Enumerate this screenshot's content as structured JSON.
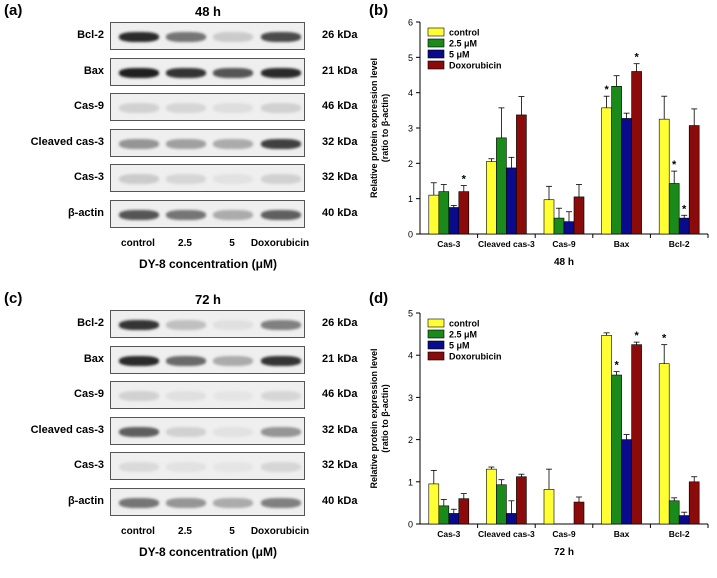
{
  "panels": {
    "a": "(a)",
    "b": "(b)",
    "c": "(c)",
    "d": "(d)"
  },
  "blot_top": {
    "title": "48 h",
    "rows": [
      {
        "label": "Bcl-2",
        "kda": "26 kDa",
        "intensity": [
          0.9,
          0.55,
          0.15,
          0.75
        ]
      },
      {
        "label": "Bax",
        "kda": "21 kDa",
        "intensity": [
          0.95,
          0.85,
          0.7,
          0.9
        ]
      },
      {
        "label": "Cas-9",
        "kda": "46 kDa",
        "intensity": [
          0.12,
          0.1,
          0.06,
          0.12
        ]
      },
      {
        "label": "Cleaved cas-3",
        "kda": "32 kDa",
        "intensity": [
          0.4,
          0.35,
          0.3,
          0.8
        ]
      },
      {
        "label": "Cas-3",
        "kda": "32 kDa",
        "intensity": [
          0.15,
          0.1,
          0.04,
          0.12
        ]
      },
      {
        "label": "β-actin",
        "kda": "40 kDa",
        "intensity": [
          0.7,
          0.55,
          0.3,
          0.65
        ]
      }
    ],
    "lanes": [
      "control",
      "2.5",
      "5",
      "Doxorubicin"
    ],
    "xaxis": "DY-8 concentration (μM)"
  },
  "blot_bottom": {
    "title": "72 h",
    "rows": [
      {
        "label": "Bcl-2",
        "kda": "26 kDa",
        "intensity": [
          0.85,
          0.2,
          0.05,
          0.5
        ]
      },
      {
        "label": "Bax",
        "kda": "21 kDa",
        "intensity": [
          0.9,
          0.6,
          0.3,
          0.85
        ]
      },
      {
        "label": "Cas-9",
        "kda": "46 kDa",
        "intensity": [
          0.12,
          0.05,
          0.03,
          0.1
        ]
      },
      {
        "label": "Cleaved cas-3",
        "kda": "32 kDa",
        "intensity": [
          0.65,
          0.12,
          0.04,
          0.4
        ]
      },
      {
        "label": "Cas-3",
        "kda": "32 kDa",
        "intensity": [
          0.08,
          0.04,
          0.03,
          0.1
        ]
      },
      {
        "label": "β-actin",
        "kda": "40 kDa",
        "intensity": [
          0.55,
          0.4,
          0.3,
          0.5
        ]
      }
    ],
    "lanes": [
      "control",
      "2.5",
      "5",
      "Doxorubicin"
    ],
    "xaxis": "DY-8 concentration (μM)"
  },
  "colors": {
    "control": "#ffff33",
    "2.5 μM": "#1a8a1a",
    "5 μM": "#0a0a8c",
    "Doxorubicin": "#8b0a0a"
  },
  "chart_data": [
    {
      "type": "bar",
      "title": "",
      "xlabel": "48 h",
      "ylabel": "Relative protein expression level (ratio to β-actin)",
      "ylim": [
        0,
        6
      ],
      "yticks": [
        0,
        1,
        2,
        3,
        4,
        5,
        6
      ],
      "categories": [
        "Cas-3",
        "Cleaved cas-3",
        "Cas-9",
        "Bax",
        "Bcl-2"
      ],
      "legend_position": "top-left",
      "series": [
        {
          "name": "control",
          "values": [
            1.1,
            2.05,
            0.97,
            3.57,
            3.25
          ],
          "errors": [
            0.35,
            0.08,
            0.38,
            0.33,
            0.65
          ]
        },
        {
          "name": "2.5 μM",
          "values": [
            1.2,
            2.72,
            0.45,
            4.18,
            1.43
          ],
          "errors": [
            0.2,
            0.85,
            0.28,
            0.3,
            0.35
          ]
        },
        {
          "name": "5 μM",
          "values": [
            0.75,
            1.87,
            0.35,
            3.27,
            0.45
          ],
          "errors": [
            0.06,
            0.3,
            0.28,
            0.15,
            0.08
          ]
        },
        {
          "name": "Doxorubicin",
          "values": [
            1.2,
            3.37,
            1.05,
            4.6,
            3.07
          ],
          "errors": [
            0.17,
            0.52,
            0.35,
            0.22,
            0.47
          ]
        }
      ],
      "significance": [
        {
          "category": "Cas-3",
          "series": "Doxorubicin"
        },
        {
          "category": "Bax",
          "series": "control"
        },
        {
          "category": "Bax",
          "series": "Doxorubicin"
        },
        {
          "category": "Bcl-2",
          "series": "2.5 μM"
        },
        {
          "category": "Bcl-2",
          "series": "5 μM"
        }
      ],
      "significance_mark": "*"
    },
    {
      "type": "bar",
      "title": "",
      "xlabel": "72 h",
      "ylabel": "Relative protein expression level (ratio to β-actin)",
      "ylim": [
        0,
        5
      ],
      "yticks": [
        0,
        1,
        2,
        3,
        4,
        5
      ],
      "categories": [
        "Cas-3",
        "Cleaved cas-3",
        "Cas-9",
        "Bax",
        "Bcl-2"
      ],
      "legend_position": "top-left",
      "series": [
        {
          "name": "control",
          "values": [
            0.95,
            1.3,
            0.82,
            4.47,
            3.8
          ],
          "errors": [
            0.32,
            0.05,
            0.48,
            0.06,
            0.45
          ]
        },
        {
          "name": "2.5 μM",
          "values": [
            0.43,
            0.93,
            0.0,
            3.53,
            0.55
          ],
          "errors": [
            0.15,
            0.12,
            0.0,
            0.08,
            0.07
          ]
        },
        {
          "name": "5 μM",
          "values": [
            0.25,
            0.25,
            0.0,
            2.0,
            0.2
          ],
          "errors": [
            0.1,
            0.3,
            0.0,
            0.12,
            0.08
          ]
        },
        {
          "name": "Doxorubicin",
          "values": [
            0.6,
            1.12,
            0.52,
            4.25,
            1.0
          ],
          "errors": [
            0.12,
            0.06,
            0.12,
            0.06,
            0.12
          ]
        }
      ],
      "significance": [
        {
          "category": "Bax",
          "series": "2.5 μM"
        },
        {
          "category": "Bax",
          "series": "Doxorubicin"
        },
        {
          "category": "Bcl-2",
          "series": "control"
        }
      ],
      "significance_mark": "*"
    }
  ]
}
